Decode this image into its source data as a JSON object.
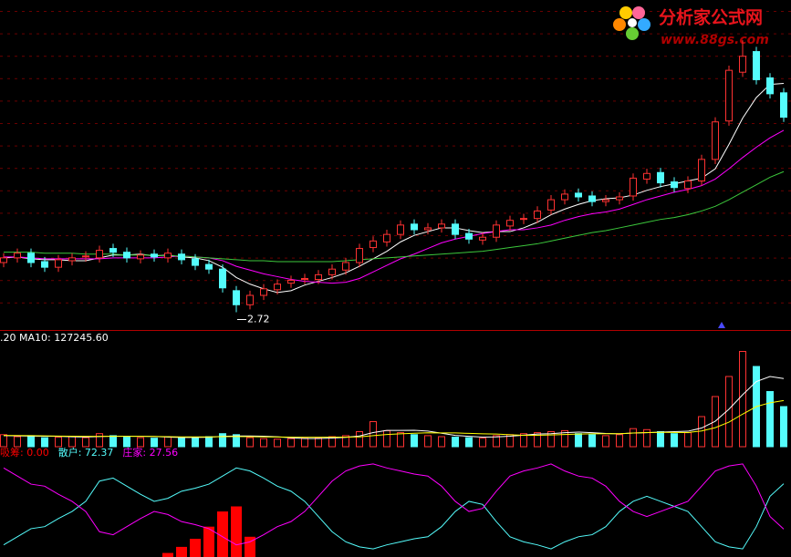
{
  "watermark": {
    "title": "分析家公式网",
    "url": "www.88gs.com"
  },
  "chart_data": [
    {
      "type": "candlestick",
      "up_color": "#ff3232",
      "down_color": "#54fcfc",
      "ylim": [
        2.55,
        6.05
      ],
      "annotation": "2.72",
      "open": [
        3.25,
        3.3,
        3.35,
        3.26,
        3.2,
        3.27,
        3.31,
        3.3,
        3.4,
        3.36,
        3.29,
        3.34,
        3.3,
        3.34,
        3.29,
        3.23,
        3.18,
        2.95,
        2.8,
        2.9,
        2.96,
        3.03,
        3.07,
        3.07,
        3.12,
        3.17,
        3.25,
        3.41,
        3.47,
        3.55,
        3.66,
        3.6,
        3.62,
        3.66,
        3.56,
        3.49,
        3.52,
        3.64,
        3.71,
        3.72,
        3.81,
        3.92,
        3.99,
        3.96,
        3.9,
        3.92,
        3.96,
        4.14,
        4.21,
        4.11,
        4.04,
        4.12,
        4.35,
        4.76,
        5.28,
        5.5,
        5.22,
        5.06
      ],
      "high": [
        3.35,
        3.4,
        3.4,
        3.31,
        3.33,
        3.35,
        3.37,
        3.43,
        3.45,
        3.41,
        3.38,
        3.39,
        3.4,
        3.39,
        3.34,
        3.28,
        3.23,
        3.0,
        2.95,
        3.02,
        3.07,
        3.11,
        3.13,
        3.17,
        3.23,
        3.3,
        3.45,
        3.53,
        3.6,
        3.7,
        3.71,
        3.67,
        3.71,
        3.71,
        3.61,
        3.57,
        3.7,
        3.75,
        3.77,
        3.85,
        3.97,
        4.03,
        4.04,
        4.01,
        3.97,
        4.0,
        4.2,
        4.25,
        4.26,
        4.16,
        4.17,
        4.4,
        4.8,
        5.35,
        5.62,
        5.55,
        5.27,
        5.11
      ],
      "low": [
        3.2,
        3.25,
        3.2,
        3.15,
        3.15,
        3.22,
        3.26,
        3.25,
        3.31,
        3.25,
        3.24,
        3.26,
        3.25,
        3.23,
        3.17,
        3.13,
        2.93,
        2.72,
        2.75,
        2.85,
        2.91,
        2.98,
        3.02,
        3.02,
        3.07,
        3.12,
        3.2,
        3.36,
        3.42,
        3.5,
        3.55,
        3.55,
        3.57,
        3.5,
        3.45,
        3.44,
        3.47,
        3.59,
        3.66,
        3.67,
        3.76,
        3.87,
        3.9,
        3.85,
        3.85,
        3.87,
        3.91,
        4.09,
        4.05,
        4.0,
        3.99,
        4.07,
        4.3,
        4.71,
        5.23,
        5.15,
        5.0,
        4.75
      ],
      "close": [
        3.3,
        3.35,
        3.25,
        3.2,
        3.28,
        3.3,
        3.32,
        3.38,
        3.36,
        3.3,
        3.33,
        3.31,
        3.35,
        3.28,
        3.22,
        3.18,
        2.98,
        2.8,
        2.9,
        2.97,
        3.02,
        3.06,
        3.08,
        3.12,
        3.18,
        3.25,
        3.4,
        3.48,
        3.55,
        3.65,
        3.6,
        3.62,
        3.66,
        3.55,
        3.5,
        3.52,
        3.65,
        3.7,
        3.72,
        3.8,
        3.92,
        3.98,
        3.95,
        3.9,
        3.92,
        3.95,
        4.15,
        4.2,
        4.1,
        4.05,
        4.12,
        4.35,
        4.75,
        5.3,
        5.45,
        5.2,
        5.05,
        4.8
      ],
      "series": [
        {
          "color": "#ffffff",
          "values": [
            3.3,
            3.31,
            3.29,
            3.28,
            3.28,
            3.27,
            3.27,
            3.3,
            3.33,
            3.33,
            3.34,
            3.32,
            3.33,
            3.31,
            3.3,
            3.27,
            3.2,
            3.09,
            3.02,
            2.97,
            2.93,
            2.95,
            3.01,
            3.05,
            3.09,
            3.14,
            3.21,
            3.29,
            3.37,
            3.47,
            3.54,
            3.58,
            3.62,
            3.62,
            3.59,
            3.57,
            3.58,
            3.58,
            3.62,
            3.68,
            3.76,
            3.82,
            3.87,
            3.91,
            3.93,
            3.94,
            3.97,
            4.02,
            4.06,
            4.09,
            4.12,
            4.15,
            4.25,
            4.51,
            4.79,
            5.01,
            5.15,
            5.16
          ]
        },
        {
          "color": "#ff00ff",
          "values": [
            3.31,
            3.31,
            3.3,
            3.29,
            3.29,
            3.29,
            3.29,
            3.29,
            3.3,
            3.3,
            3.3,
            3.3,
            3.31,
            3.32,
            3.31,
            3.3,
            3.27,
            3.21,
            3.17,
            3.13,
            3.1,
            3.07,
            3.05,
            3.04,
            3.03,
            3.04,
            3.08,
            3.15,
            3.22,
            3.29,
            3.34,
            3.4,
            3.46,
            3.5,
            3.53,
            3.56,
            3.58,
            3.6,
            3.6,
            3.62,
            3.65,
            3.7,
            3.74,
            3.77,
            3.79,
            3.82,
            3.87,
            3.92,
            3.96,
            4.0,
            4.03,
            4.07,
            4.14,
            4.25,
            4.37,
            4.48,
            4.58,
            4.66
          ]
        },
        {
          "color": "#3cc83c",
          "values": [
            3.36,
            3.36,
            3.36,
            3.35,
            3.35,
            3.35,
            3.34,
            3.34,
            3.34,
            3.33,
            3.33,
            3.33,
            3.32,
            3.32,
            3.31,
            3.3,
            3.29,
            3.28,
            3.27,
            3.27,
            3.26,
            3.26,
            3.26,
            3.26,
            3.26,
            3.27,
            3.28,
            3.29,
            3.3,
            3.31,
            3.32,
            3.33,
            3.34,
            3.35,
            3.36,
            3.37,
            3.39,
            3.41,
            3.43,
            3.45,
            3.48,
            3.51,
            3.54,
            3.57,
            3.59,
            3.62,
            3.65,
            3.68,
            3.71,
            3.73,
            3.76,
            3.8,
            3.85,
            3.92,
            4.0,
            4.08,
            4.16,
            4.22
          ]
        }
      ]
    },
    {
      "type": "bar",
      "legend": ".20 MA10: 127245.60",
      "ylim": [
        0,
        1000000
      ],
      "values": [
        120000,
        100000,
        110000,
        90000,
        95000,
        100000,
        90000,
        130000,
        110000,
        95000,
        90000,
        85000,
        100000,
        90000,
        95000,
        100000,
        130000,
        120000,
        90000,
        80000,
        75000,
        80000,
        85000,
        90000,
        100000,
        110000,
        150000,
        250000,
        160000,
        140000,
        120000,
        110000,
        100000,
        95000,
        90000,
        85000,
        110000,
        120000,
        130000,
        140000,
        150000,
        160000,
        130000,
        120000,
        110000,
        120000,
        180000,
        170000,
        150000,
        130000,
        140000,
        300000,
        500000,
        700000,
        950000,
        800000,
        550000,
        400000
      ],
      "series": [
        {
          "color": "#ffffff",
          "values": [
            110000,
            108000,
            106000,
            104000,
            103000,
            99000,
            97000,
            101000,
            105000,
            105000,
            103000,
            102000,
            96000,
            92000,
            92000,
            94000,
            103000,
            107000,
            107000,
            104000,
            99000,
            89000,
            82000,
            82000,
            86000,
            93000,
            107000,
            141000,
            162000,
            162000,
            164000,
            156000,
            134000,
            113000,
            103000,
            96000,
            98000,
            104000,
            115000,
            126000,
            130000,
            140000,
            146000,
            140000,
            132000,
            128000,
            136000,
            140000,
            146000,
            150000,
            154000,
            186000,
            254000,
            374000,
            518000,
            650000,
            700000,
            680000
          ]
        },
        {
          "color": "#ffff00",
          "values": [
            112000,
            111000,
            110000,
            108000,
            106000,
            104000,
            103000,
            103000,
            103000,
            103000,
            103000,
            102000,
            100000,
            98000,
            98000,
            98000,
            100000,
            101000,
            100000,
            98000,
            97000,
            96000,
            94000,
            94000,
            95000,
            96000,
            98000,
            110000,
            122000,
            128000,
            134000,
            139000,
            138000,
            137000,
            133000,
            128000,
            126000,
            119000,
            114000,
            114000,
            117000,
            122000,
            126000,
            128000,
            129000,
            130000,
            136000,
            141000,
            143000,
            142000,
            141000,
            157000,
            190000,
            245000,
            325000,
            400000,
            438000,
            460000
          ]
        }
      ]
    },
    {
      "type": "line",
      "ylim": [
        0,
        100
      ],
      "series": [
        {
          "name": "吸筹: 0.00",
          "style": "bar",
          "color": "#ff0000",
          "values": [
            0,
            0,
            0,
            0,
            0,
            0,
            0,
            0,
            0,
            0,
            0,
            0,
            4,
            10,
            18,
            30,
            45,
            50,
            20,
            0,
            0,
            0,
            0,
            0,
            0,
            0,
            0,
            0,
            0,
            0,
            0,
            0,
            0,
            0,
            0,
            0,
            0,
            0,
            0,
            0,
            0,
            0,
            0,
            0,
            0,
            0,
            0,
            0,
            0,
            0,
            0,
            0,
            0,
            0,
            0,
            0,
            0,
            0
          ]
        },
        {
          "name": "散户: 72.37",
          "color": "#54fcfc",
          "values": [
            12,
            20,
            28,
            30,
            38,
            45,
            55,
            75,
            78,
            70,
            62,
            55,
            58,
            65,
            68,
            72,
            80,
            88,
            85,
            78,
            70,
            65,
            55,
            40,
            25,
            15,
            10,
            8,
            12,
            15,
            18,
            20,
            30,
            45,
            55,
            52,
            35,
            20,
            15,
            12,
            8,
            15,
            20,
            22,
            30,
            45,
            55,
            60,
            55,
            50,
            45,
            30,
            15,
            10,
            8,
            30,
            60,
            72.37
          ]
        },
        {
          "name": "庄家: 27.56",
          "color": "#ff00ff",
          "values": [
            88,
            80,
            72,
            70,
            62,
            55,
            45,
            25,
            22,
            30,
            38,
            45,
            42,
            35,
            32,
            28,
            20,
            12,
            15,
            22,
            30,
            35,
            45,
            60,
            75,
            85,
            90,
            92,
            88,
            85,
            82,
            80,
            70,
            55,
            45,
            48,
            65,
            80,
            85,
            88,
            92,
            85,
            80,
            78,
            70,
            55,
            45,
            40,
            45,
            50,
            55,
            70,
            85,
            90,
            92,
            70,
            40,
            27.56
          ]
        }
      ]
    }
  ]
}
